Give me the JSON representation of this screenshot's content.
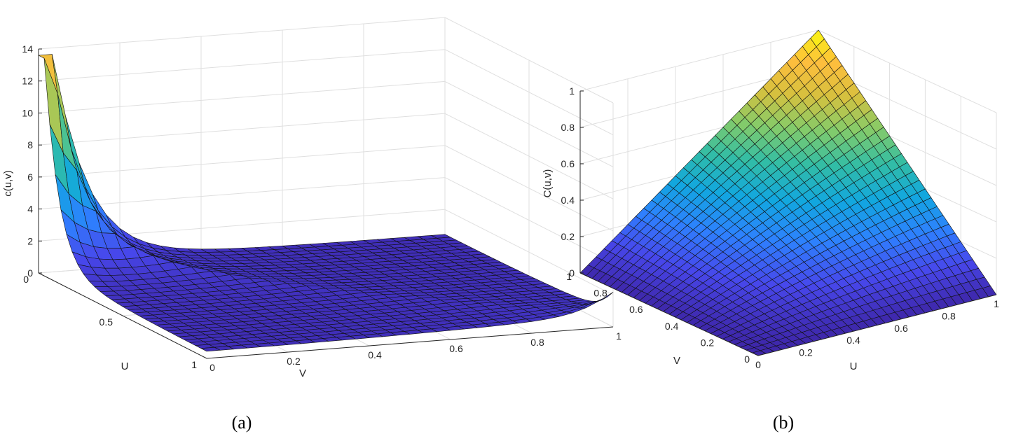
{
  "chart_data": [
    {
      "type": "surface",
      "title": "",
      "caption": "(a)",
      "xlabel": "U",
      "ylabel": "V",
      "zlabel": "c(u,v)",
      "xlim": [
        0,
        1
      ],
      "ylim": [
        0,
        1
      ],
      "zlim": [
        0,
        14
      ],
      "x_ticks": [
        0,
        0.5,
        1
      ],
      "y_ticks": [
        0,
        0.2,
        0.4,
        0.6,
        0.8,
        1
      ],
      "z_ticks": [
        0,
        2,
        4,
        6,
        8,
        10,
        12,
        14
      ],
      "x_tick_labels": [
        "0",
        "0.5",
        "1"
      ],
      "y_tick_labels": [
        "0",
        "0.2",
        "0.4",
        "0.6",
        "0.8",
        "1"
      ],
      "z_tick_labels": [
        "0",
        "2",
        "4",
        "6",
        "8",
        "10",
        "12",
        "14"
      ],
      "grid": true,
      "colormap": "parula",
      "mesh": 30,
      "peak_value": 13.6,
      "sample_values": [
        {
          "u": 0.03,
          "v": 0.03,
          "z": 13.6
        },
        {
          "u": 0.1,
          "v": 0.1,
          "z": 6.5
        },
        {
          "u": 0.2,
          "v": 0.2,
          "z": 2.2
        },
        {
          "u": 0.5,
          "v": 0.5,
          "z": 1.0
        },
        {
          "u": 0.97,
          "v": 0.97,
          "z": 1.8
        }
      ]
    },
    {
      "type": "surface",
      "title": "",
      "caption": "(b)",
      "xlabel": "U",
      "ylabel": "V",
      "zlabel": "C(u,v)",
      "xlim": [
        0,
        1
      ],
      "ylim": [
        0,
        1
      ],
      "zlim": [
        0,
        1
      ],
      "x_ticks": [
        0,
        0.2,
        0.4,
        0.6,
        0.8,
        1
      ],
      "y_ticks": [
        0,
        0.2,
        0.4,
        0.6,
        0.8,
        1
      ],
      "z_ticks": [
        0,
        0.2,
        0.4,
        0.6,
        0.8,
        1
      ],
      "x_tick_labels": [
        "0",
        "0.2",
        "0.4",
        "0.6",
        "0.8",
        "1"
      ],
      "y_tick_labels": [
        "0",
        "0.2",
        "0.4",
        "0.6",
        "0.8",
        "1"
      ],
      "z_tick_labels": [
        "0",
        "0.2",
        "0.4",
        "0.6",
        "0.8",
        "1"
      ],
      "grid": true,
      "colormap": "parula",
      "mesh": 30,
      "sample_values": [
        {
          "u": 0,
          "v": 0,
          "z": 0
        },
        {
          "u": 1,
          "v": 0,
          "z": 0
        },
        {
          "u": 0,
          "v": 1,
          "z": 0
        },
        {
          "u": 0.5,
          "v": 0.5,
          "z": 0.3
        },
        {
          "u": 1,
          "v": 1,
          "z": 1
        }
      ]
    }
  ]
}
